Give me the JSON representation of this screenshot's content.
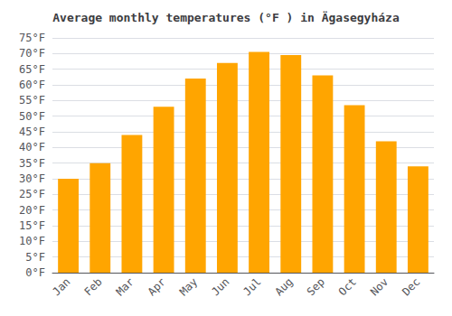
{
  "chart_data": {
    "type": "bar",
    "title": "Average monthly temperatures (°F ) in Ägasegyháza",
    "categories": [
      "Jan",
      "Feb",
      "Mar",
      "Apr",
      "May",
      "Jun",
      "Jul",
      "Aug",
      "Sep",
      "Oct",
      "Nov",
      "Dec"
    ],
    "values": [
      30,
      35,
      44,
      53,
      62,
      67,
      70.5,
      69.5,
      63,
      53.5,
      42,
      34
    ],
    "color": "#FFA500",
    "ylim": [
      0,
      75
    ],
    "yticks": [
      {
        "value": 0,
        "label": "0°F"
      },
      {
        "value": 5,
        "label": "5°F"
      },
      {
        "value": 10,
        "label": "10°F"
      },
      {
        "value": 15,
        "label": "15°F"
      },
      {
        "value": 20,
        "label": "20°F"
      },
      {
        "value": 25,
        "label": "25°F"
      },
      {
        "value": 30,
        "label": "30°F"
      },
      {
        "value": 35,
        "label": "35°F"
      },
      {
        "value": 40,
        "label": "40°F"
      },
      {
        "value": 45,
        "label": "45°F"
      },
      {
        "value": 50,
        "label": "50°F"
      },
      {
        "value": 55,
        "label": "55°F"
      },
      {
        "value": 60,
        "label": "60°F"
      },
      {
        "value": 65,
        "label": "65°F"
      },
      {
        "value": 70,
        "label": "70°F"
      },
      {
        "value": 75,
        "label": "75°F"
      }
    ],
    "grid": true
  }
}
